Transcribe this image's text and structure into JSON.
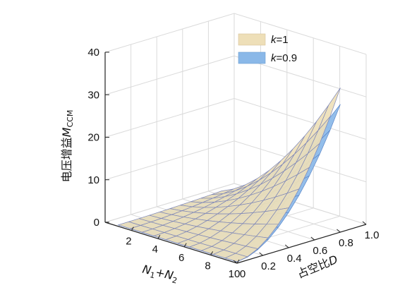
{
  "chart_data": {
    "type": "surface",
    "title": "",
    "xlabel": "N₁+N₂",
    "ylabel": "占空比D",
    "zlabel": "电压增益M_CCM",
    "xlim": [
      0,
      10
    ],
    "ylim": [
      0,
      1.0
    ],
    "zlim": [
      0,
      40
    ],
    "x_ticks": [
      "2",
      "4",
      "6",
      "8",
      "10"
    ],
    "y_ticks": [
      "0",
      "0.2",
      "0.4",
      "0.6",
      "0.8",
      "1.0"
    ],
    "z_ticks": [
      "0",
      "10",
      "20",
      "30",
      "40"
    ],
    "grid": true,
    "legend_position": "top-right",
    "series": [
      {
        "name": "k=1",
        "k": 1.0,
        "color": "#eedfb8"
      },
      {
        "name": "k=0.9",
        "k": 0.9,
        "color": "#8ab8e8"
      }
    ],
    "x_range": [
      1,
      10
    ],
    "d_range": [
      0,
      0.8
    ],
    "approx_peak": {
      "x": 10,
      "d": 0.8,
      "k=1": 35,
      "k=0.9": 31
    }
  },
  "labels": {
    "zlabel_main": "电压增益",
    "zlabel_var": "M",
    "zlabel_sub": "CCM",
    "xlabel_n1": "N",
    "xlabel_sub1": "1",
    "xlabel_plus": "+",
    "xlabel_n2": "N",
    "xlabel_sub2": "2",
    "ylabel_main": "占空比",
    "ylabel_var": "D",
    "legend_k1_var": "k",
    "legend_k1_val": "=1",
    "legend_k09_var": "k",
    "legend_k09_val": "=0.9"
  }
}
